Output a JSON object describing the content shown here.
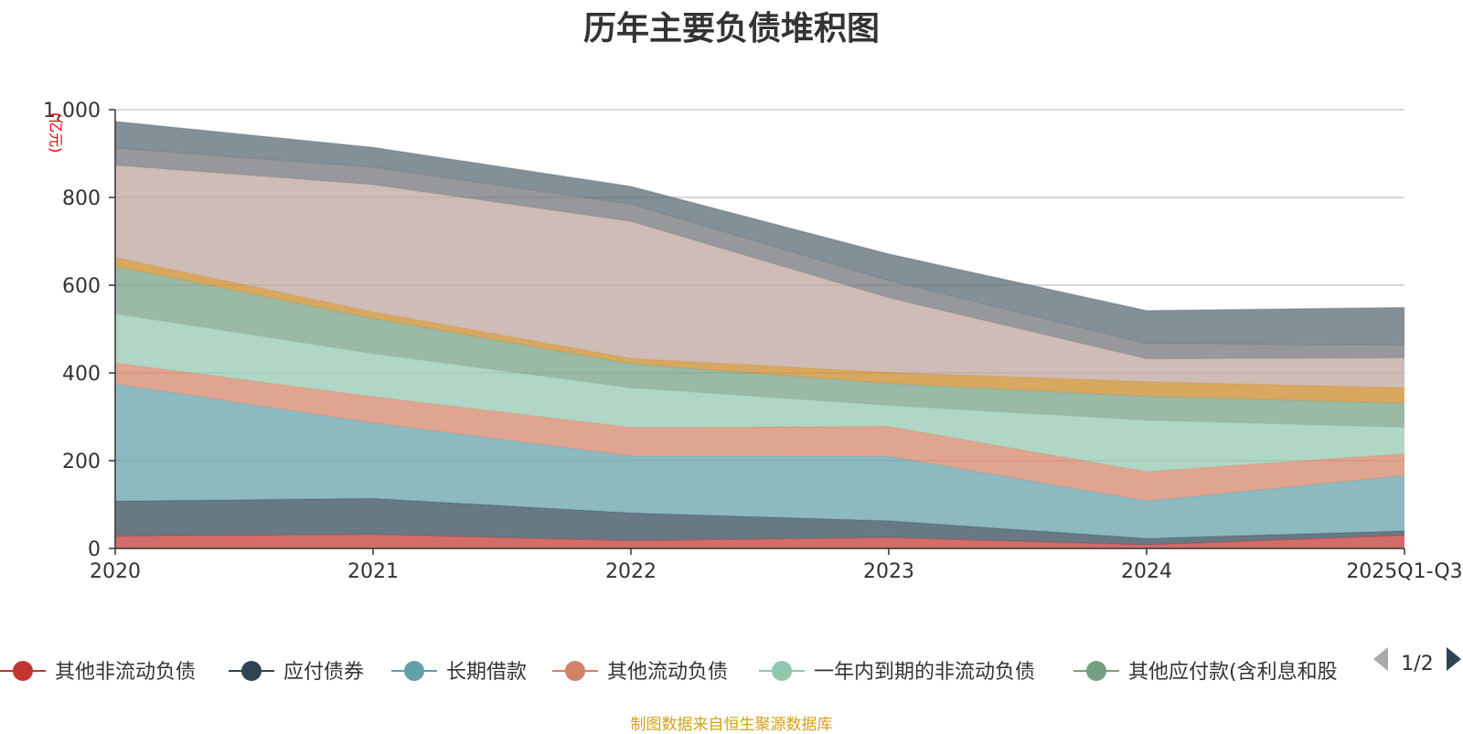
{
  "chart_data": {
    "type": "area",
    "stacked": true,
    "title": "历年主要负债堆积图",
    "unit_label": "(亿元)",
    "ylim": [
      0,
      1000
    ],
    "yticks": [
      0,
      200,
      400,
      600,
      800,
      1000
    ],
    "ytick_labels": [
      "0",
      "200",
      "400",
      "600",
      "800",
      "1,000"
    ],
    "categories": [
      "2020",
      "2021",
      "2022",
      "2023",
      "2024",
      "2025Q1-Q3"
    ],
    "series": [
      {
        "name": "其他非流动负债",
        "values": [
          28,
          32,
          18,
          25,
          8,
          30
        ],
        "color": "#c23531",
        "in_legend": true
      },
      {
        "name": "应付债券",
        "values": [
          80,
          82,
          63,
          38,
          15,
          10
        ],
        "color": "#2f4554",
        "in_legend": true
      },
      {
        "name": "长期借款",
        "values": [
          267,
          172,
          130,
          147,
          85,
          126
        ],
        "color": "#61a0a8",
        "in_legend": true
      },
      {
        "name": "其他流动负债",
        "values": [
          48,
          60,
          65,
          68,
          67,
          50
        ],
        "color": "#d48265",
        "in_legend": true
      },
      {
        "name": "一年内到期的非流动负债",
        "values": [
          112,
          98,
          90,
          48,
          117,
          60
        ],
        "color": "#91c7ae",
        "in_legend": true
      },
      {
        "name": "其他应付款(含利息和股",
        "values": [
          108,
          80,
          55,
          50,
          55,
          55
        ],
        "color": "#749f83",
        "in_legend": true
      },
      {
        "name": "",
        "values": [
          20,
          15,
          12,
          25,
          33,
          35
        ],
        "color": "#ca8622",
        "in_legend": false
      },
      {
        "name": "",
        "values": [
          210,
          290,
          312,
          170,
          52,
          68
        ],
        "color": "#bda29a",
        "in_legend": false
      },
      {
        "name": "",
        "values": [
          40,
          40,
          40,
          40,
          35,
          30
        ],
        "color": "#6e7074",
        "in_legend": false
      },
      {
        "name": "",
        "values": [
          60,
          45,
          40,
          60,
          75,
          85
        ],
        "color": "#546570",
        "in_legend": false
      }
    ]
  },
  "legend": {
    "page_indicator": "1/2"
  },
  "source_note": "制图数据来自恒生聚源数据库"
}
